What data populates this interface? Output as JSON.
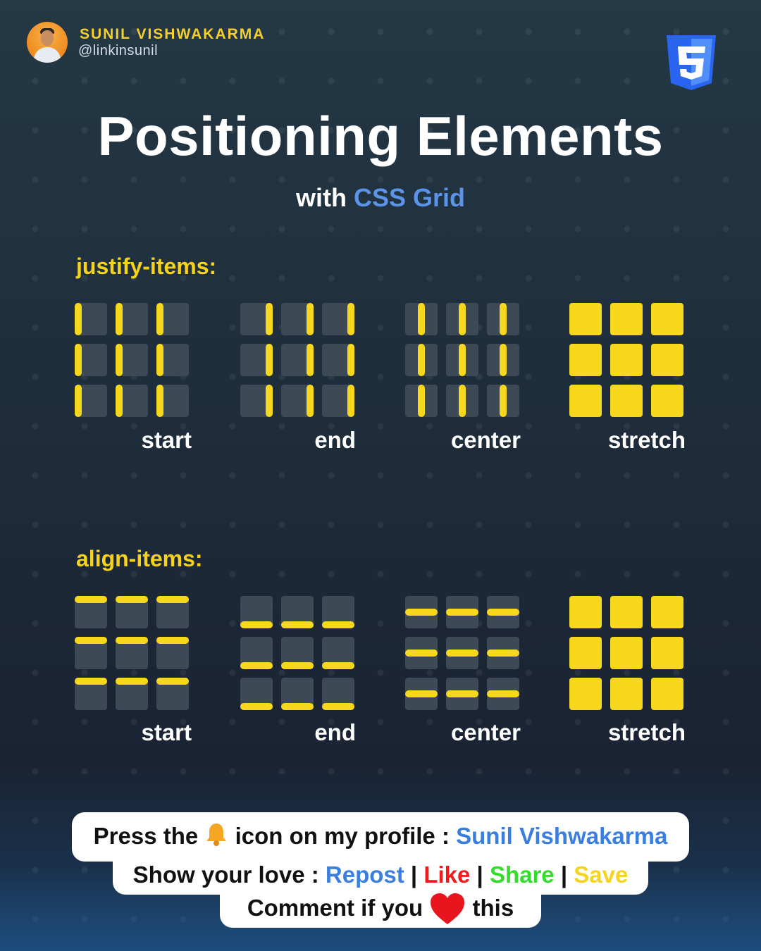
{
  "author": {
    "name": "SUNIL VISHWAKARMA",
    "handle": "@linkinsunil"
  },
  "logo": {
    "icon": "css3-shield-icon",
    "color": "#2965f1"
  },
  "title": "Positioning Elements",
  "subtitle": {
    "prefix": "with",
    "accent": "CSS Grid"
  },
  "colors": {
    "accent_yellow": "#f7d81d",
    "cell_gray": "#3d4954",
    "accent_blue": "#5b94e6"
  },
  "sections": [
    {
      "label": "justify-items:",
      "values": [
        "start",
        "end",
        "center",
        "stretch"
      ]
    },
    {
      "label": "align-items:",
      "values": [
        "start",
        "end",
        "center",
        "stretch"
      ]
    }
  ],
  "footer": {
    "line1": {
      "prefix": "Press the",
      "icon": "bell-icon",
      "middle": "icon on my profile :",
      "name": "Sunil Vishwakarma"
    },
    "line2": {
      "prefix": "Show your love :",
      "repost": "Repost",
      "sep": "|",
      "like": "Like",
      "share": "Share",
      "save": "Save"
    },
    "line3": {
      "prefix": "Comment if you",
      "icon": "heart-icon",
      "suffix": "this"
    }
  }
}
